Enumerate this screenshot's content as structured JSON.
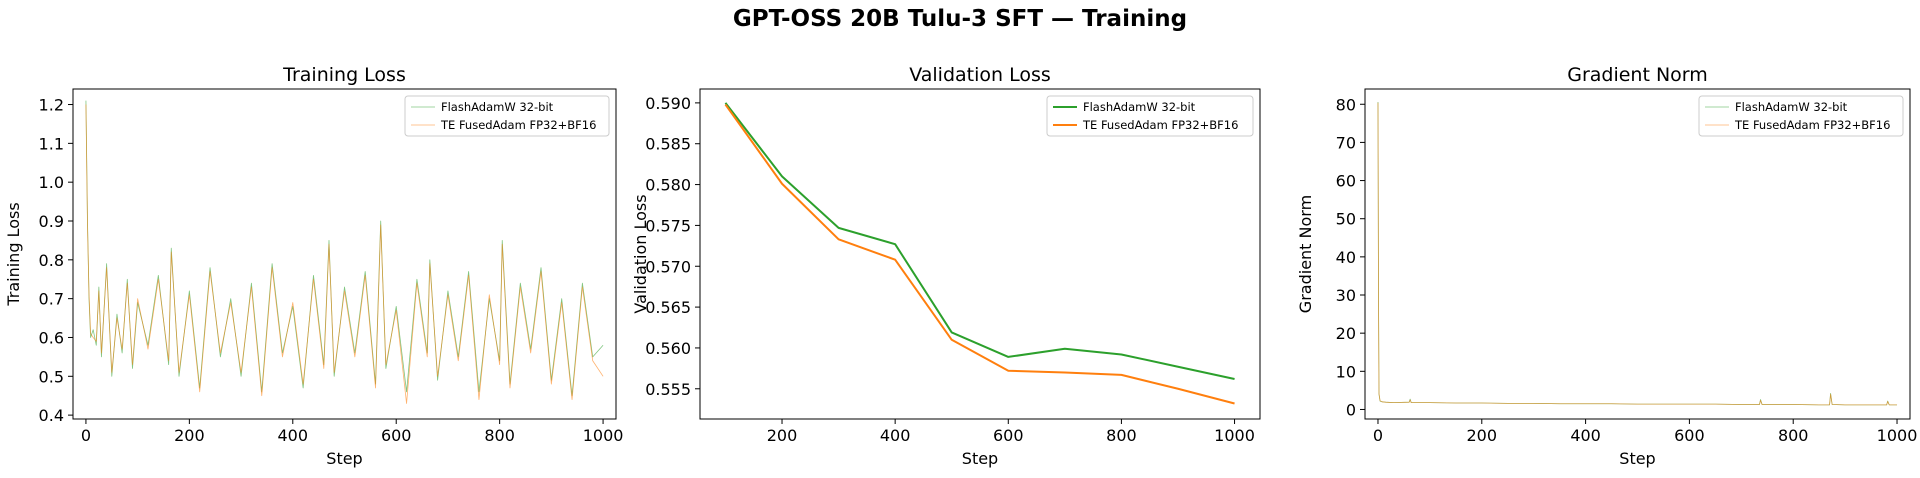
{
  "suptitle": "GPT-OSS 20B Tulu-3 SFT — Training",
  "colors": {
    "flash": "#2ca02c",
    "te": "#ff7f0e"
  },
  "chart_data": [
    {
      "type": "line",
      "title": "Training Loss",
      "xlabel": "Step",
      "ylabel": "Training Loss",
      "xlim": [
        -25,
        1025
      ],
      "ylim": [
        0.39,
        1.24
      ],
      "xticks": [
        0,
        200,
        400,
        600,
        800,
        1000
      ],
      "yticks": [
        0.4,
        0.5,
        0.6,
        0.7,
        0.8,
        0.9,
        1.0,
        1.1,
        1.2
      ],
      "ytick_decimals": 1,
      "grid": false,
      "legend": "top-right",
      "series": [
        {
          "name": "FlashAdamW 32-bit",
          "color": "#2ca02c",
          "line_width": 0.8,
          "opacity": 0.6,
          "x": [
            0,
            3,
            6,
            9,
            14,
            20,
            25,
            30,
            40,
            50,
            60,
            70,
            80,
            90,
            100,
            120,
            140,
            160,
            165,
            180,
            200,
            220,
            240,
            260,
            280,
            300,
            320,
            340,
            360,
            380,
            400,
            420,
            440,
            460,
            470,
            480,
            500,
            520,
            540,
            560,
            570,
            580,
            600,
            620,
            640,
            660,
            665,
            680,
            700,
            720,
            740,
            760,
            780,
            800,
            805,
            820,
            840,
            860,
            880,
            900,
            920,
            940,
            960,
            980,
            1000
          ],
          "y": [
            1.21,
            0.9,
            0.7,
            0.6,
            0.62,
            0.58,
            0.73,
            0.55,
            0.79,
            0.5,
            0.66,
            0.56,
            0.75,
            0.52,
            0.69,
            0.58,
            0.76,
            0.53,
            0.83,
            0.5,
            0.72,
            0.47,
            0.78,
            0.55,
            0.7,
            0.5,
            0.74,
            0.46,
            0.79,
            0.56,
            0.68,
            0.47,
            0.76,
            0.53,
            0.85,
            0.5,
            0.73,
            0.56,
            0.77,
            0.48,
            0.9,
            0.52,
            0.68,
            0.46,
            0.75,
            0.56,
            0.8,
            0.49,
            0.72,
            0.55,
            0.77,
            0.46,
            0.7,
            0.54,
            0.85,
            0.48,
            0.74,
            0.57,
            0.78,
            0.49,
            0.7,
            0.45,
            0.74,
            0.55,
            0.58
          ]
        },
        {
          "name": "TE FusedAdam FP32+BF16",
          "color": "#ff7f0e",
          "line_width": 0.8,
          "opacity": 0.6,
          "x": [
            0,
            3,
            6,
            9,
            14,
            20,
            25,
            30,
            40,
            50,
            60,
            70,
            80,
            90,
            100,
            120,
            140,
            160,
            165,
            180,
            200,
            220,
            240,
            260,
            280,
            300,
            320,
            340,
            360,
            380,
            400,
            420,
            440,
            460,
            470,
            480,
            500,
            520,
            540,
            560,
            570,
            580,
            600,
            620,
            640,
            660,
            665,
            680,
            700,
            720,
            740,
            760,
            780,
            800,
            805,
            820,
            840,
            860,
            880,
            900,
            920,
            940,
            960,
            980,
            1000
          ],
          "y": [
            1.2,
            0.89,
            0.71,
            0.61,
            0.6,
            0.59,
            0.72,
            0.56,
            0.78,
            0.51,
            0.65,
            0.57,
            0.74,
            0.53,
            0.7,
            0.57,
            0.75,
            0.54,
            0.82,
            0.51,
            0.71,
            0.46,
            0.77,
            0.56,
            0.69,
            0.51,
            0.73,
            0.45,
            0.78,
            0.55,
            0.69,
            0.48,
            0.75,
            0.52,
            0.84,
            0.51,
            0.72,
            0.55,
            0.76,
            0.47,
            0.89,
            0.53,
            0.67,
            0.43,
            0.74,
            0.55,
            0.79,
            0.5,
            0.71,
            0.54,
            0.76,
            0.44,
            0.71,
            0.53,
            0.84,
            0.47,
            0.73,
            0.56,
            0.77,
            0.48,
            0.69,
            0.44,
            0.73,
            0.54,
            0.5
          ]
        }
      ]
    },
    {
      "type": "line",
      "title": "Validation Loss",
      "xlabel": "Step",
      "ylabel": "Validation Loss",
      "xlim": [
        55,
        1045
      ],
      "ylim": [
        0.5513,
        0.5917
      ],
      "xticks": [
        200,
        400,
        600,
        800,
        1000
      ],
      "yticks": [
        0.555,
        0.56,
        0.565,
        0.57,
        0.575,
        0.58,
        0.585,
        0.59
      ],
      "ytick_decimals": 3,
      "grid": false,
      "legend": "top-right",
      "series": [
        {
          "name": "FlashAdamW 32-bit",
          "color": "#2ca02c",
          "line_width": 2,
          "opacity": 1,
          "x": [
            100,
            200,
            300,
            400,
            500,
            600,
            700,
            800,
            900,
            1000
          ],
          "y": [
            0.59,
            0.581,
            0.5747,
            0.5727,
            0.5619,
            0.5589,
            0.5599,
            0.5592,
            0.5577,
            0.5562
          ]
        },
        {
          "name": "TE FusedAdam FP32+BF16",
          "color": "#ff7f0e",
          "line_width": 2,
          "opacity": 1,
          "x": [
            100,
            200,
            300,
            400,
            500,
            600,
            700,
            800,
            900,
            1000
          ],
          "y": [
            0.5898,
            0.5801,
            0.5733,
            0.5708,
            0.561,
            0.5572,
            0.557,
            0.5567,
            0.555,
            0.5532
          ]
        }
      ]
    },
    {
      "type": "line",
      "title": "Gradient Norm",
      "xlabel": "Step",
      "ylabel": "Gradient Norm",
      "xlim": [
        -25,
        1025
      ],
      "ylim": [
        -2.5,
        84
      ],
      "xticks": [
        0,
        200,
        400,
        600,
        800,
        1000
      ],
      "yticks": [
        0,
        10,
        20,
        30,
        40,
        50,
        60,
        70,
        80
      ],
      "ytick_decimals": 0,
      "grid": false,
      "legend": "top-right",
      "series": [
        {
          "name": "FlashAdamW 32-bit",
          "color": "#2ca02c",
          "line_width": 0.8,
          "opacity": 0.6,
          "x": [
            0,
            1,
            2,
            4,
            8,
            15,
            30,
            60,
            62,
            64,
            100,
            150,
            200,
            250,
            300,
            350,
            400,
            450,
            500,
            550,
            600,
            650,
            700,
            735,
            737,
            740,
            800,
            850,
            870,
            872,
            875,
            900,
            950,
            980,
            982,
            985,
            1000
          ],
          "y": [
            80.6,
            30,
            4,
            2.2,
            2,
            1.9,
            1.8,
            1.9,
            2.7,
            1.8,
            1.8,
            1.7,
            1.7,
            1.6,
            1.6,
            1.5,
            1.5,
            1.5,
            1.4,
            1.4,
            1.4,
            1.4,
            1.3,
            1.3,
            2.6,
            1.3,
            1.3,
            1.2,
            1.2,
            4.2,
            1.3,
            1.2,
            1.2,
            1.2,
            2.2,
            1.2,
            1.2
          ]
        },
        {
          "name": "TE FusedAdam FP32+BF16",
          "color": "#ff7f0e",
          "line_width": 0.8,
          "opacity": 0.6,
          "x": [
            0,
            1,
            2,
            4,
            8,
            15,
            30,
            60,
            62,
            64,
            100,
            150,
            200,
            250,
            300,
            350,
            400,
            450,
            500,
            550,
            600,
            650,
            700,
            735,
            737,
            740,
            800,
            850,
            870,
            872,
            875,
            900,
            950,
            980,
            982,
            985,
            1000
          ],
          "y": [
            80.4,
            29,
            4.1,
            2.3,
            2,
            1.9,
            1.8,
            1.9,
            2.5,
            1.8,
            1.8,
            1.7,
            1.7,
            1.6,
            1.6,
            1.5,
            1.5,
            1.5,
            1.4,
            1.4,
            1.4,
            1.4,
            1.3,
            1.3,
            2.4,
            1.3,
            1.3,
            1.2,
            1.2,
            4,
            1.3,
            1.2,
            1.2,
            1.2,
            2.1,
            1.2,
            1.2
          ]
        }
      ]
    }
  ]
}
